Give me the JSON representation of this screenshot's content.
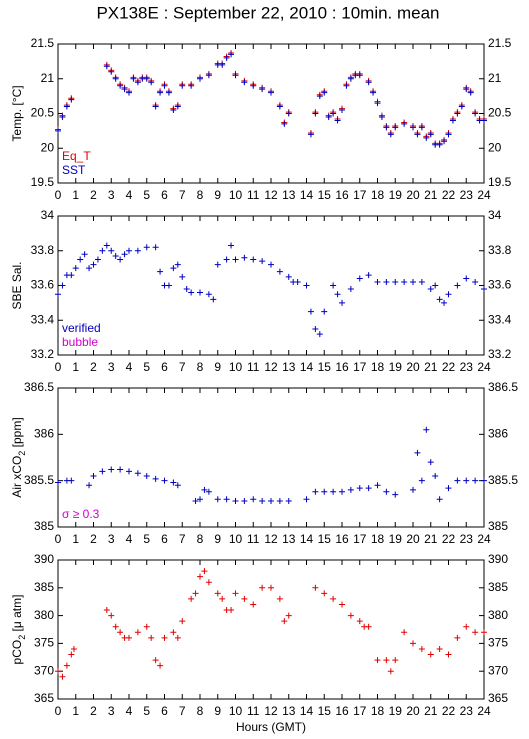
{
  "chart_data": [
    {
      "type": "scatter",
      "title": "PX138E : September 22, 2010 : 10min. mean",
      "ylabel": "Temp. [°C]",
      "x": [
        0,
        0.25,
        0.5,
        0.75,
        2.75,
        3,
        3.25,
        3.5,
        3.75,
        4,
        4.25,
        4.5,
        4.75,
        5,
        5.25,
        5.5,
        5.75,
        6,
        6.25,
        6.5,
        6.75,
        7,
        7.5,
        8,
        8.5,
        9,
        9.25,
        9.5,
        9.75,
        10,
        10.5,
        11,
        11.5,
        12,
        12.5,
        12.75,
        13,
        14.25,
        14.5,
        14.75,
        15,
        15.25,
        15.5,
        15.75,
        16,
        16.25,
        16.5,
        16.75,
        17,
        17.5,
        17.75,
        18,
        18.25,
        18.5,
        18.75,
        19,
        19.5,
        20,
        20.25,
        20.5,
        20.75,
        21,
        21.25,
        21.5,
        21.75,
        22,
        22.25,
        22.5,
        22.75,
        23,
        23.25,
        23.5,
        23.75,
        24
      ],
      "series": [
        {
          "name": "Eq_T",
          "color": "#e00000",
          "values": [
            20.27,
            20.47,
            20.62,
            20.72,
            21.2,
            21.12,
            21.02,
            20.92,
            20.87,
            20.82,
            21.02,
            20.97,
            21.02,
            21.02,
            20.97,
            20.62,
            20.82,
            20.92,
            20.82,
            20.57,
            20.62,
            20.92,
            20.92,
            21.02,
            21.07,
            21.22,
            21.22,
            21.32,
            21.37,
            21.07,
            20.97,
            20.92,
            20.87,
            20.82,
            20.62,
            20.37,
            20.52,
            20.22,
            20.52,
            20.77,
            20.82,
            20.47,
            20.52,
            20.42,
            20.57,
            20.92,
            21.02,
            21.07,
            21.07,
            20.97,
            20.82,
            20.67,
            20.47,
            20.32,
            20.22,
            20.32,
            20.37,
            20.32,
            20.22,
            20.32,
            20.17,
            20.22,
            20.07,
            20.07,
            20.12,
            20.22,
            20.42,
            20.52,
            20.62,
            20.87,
            20.82,
            20.52,
            20.42,
            20.42
          ]
        },
        {
          "name": "SST",
          "color": "#0000c0",
          "values": [
            20.25,
            20.45,
            20.6,
            20.7,
            21.18,
            21.1,
            21.0,
            20.9,
            20.85,
            20.8,
            21.0,
            20.95,
            21.0,
            21.0,
            20.95,
            20.6,
            20.8,
            20.9,
            20.8,
            20.55,
            20.6,
            20.9,
            20.9,
            21.0,
            21.05,
            21.2,
            21.2,
            21.3,
            21.35,
            21.05,
            20.95,
            20.9,
            20.85,
            20.8,
            20.6,
            20.35,
            20.5,
            20.2,
            20.5,
            20.75,
            20.8,
            20.45,
            20.5,
            20.4,
            20.55,
            20.9,
            21.0,
            21.05,
            21.05,
            20.95,
            20.8,
            20.65,
            20.45,
            20.3,
            20.2,
            20.3,
            20.35,
            20.3,
            20.2,
            20.3,
            20.15,
            20.2,
            20.05,
            20.05,
            20.1,
            20.2,
            20.4,
            20.5,
            20.6,
            20.85,
            20.8,
            20.5,
            20.4,
            20.4
          ]
        }
      ],
      "xlim": [
        0,
        24
      ],
      "xticks": [
        0,
        1,
        2,
        3,
        4,
        5,
        6,
        7,
        8,
        9,
        10,
        11,
        12,
        13,
        14,
        15,
        16,
        17,
        18,
        19,
        20,
        21,
        22,
        23,
        24
      ],
      "ylim": [
        19.5,
        21.5
      ],
      "yticks": [
        19.5,
        20,
        20.5,
        21,
        21.5
      ]
    },
    {
      "type": "scatter",
      "ylabel": "SBE Sal.",
      "x": [
        0,
        0.25,
        0.5,
        0.75,
        1,
        1.25,
        1.5,
        1.75,
        2,
        2.25,
        2.5,
        2.75,
        3,
        3.25,
        3.5,
        3.75,
        4,
        4.5,
        5,
        5.5,
        5.75,
        6,
        6.25,
        6.5,
        6.75,
        7,
        7.25,
        7.5,
        8,
        8.5,
        8.75,
        9,
        9.5,
        9.75,
        10,
        10.5,
        11,
        11.5,
        12,
        12.5,
        13,
        13.25,
        13.5,
        14,
        14.25,
        14.5,
        14.75,
        15,
        15.5,
        15.75,
        16,
        16.5,
        17,
        17.5,
        18,
        18.5,
        19,
        19.5,
        20,
        20.5,
        21,
        21.25,
        21.5,
        21.75,
        22,
        22.5,
        23,
        23.5,
        24
      ],
      "series": [
        {
          "name": "verified",
          "color": "#0000c0",
          "values": [
            33.55,
            33.6,
            33.66,
            33.66,
            33.7,
            33.75,
            33.78,
            33.7,
            33.72,
            33.75,
            33.8,
            33.83,
            33.8,
            33.77,
            33.75,
            33.78,
            33.8,
            33.8,
            33.82,
            33.82,
            33.68,
            33.6,
            33.6,
            33.7,
            33.72,
            33.65,
            33.58,
            33.56,
            33.56,
            33.55,
            33.52,
            33.72,
            33.75,
            33.83,
            33.75,
            33.76,
            33.75,
            33.74,
            33.72,
            33.68,
            33.65,
            33.62,
            33.62,
            33.6,
            33.45,
            33.35,
            33.32,
            33.45,
            33.6,
            33.55,
            33.5,
            33.58,
            33.64,
            33.66,
            33.62,
            33.62,
            33.62,
            33.62,
            33.62,
            33.62,
            33.58,
            33.6,
            33.52,
            33.5,
            33.55,
            33.6,
            33.64,
            33.62,
            33.58
          ]
        },
        {
          "name": "bubble",
          "color": "#d000d0",
          "values": []
        }
      ],
      "xlim": [
        0,
        24
      ],
      "xticks": [
        0,
        1,
        2,
        3,
        4,
        5,
        6,
        7,
        8,
        9,
        10,
        11,
        12,
        13,
        14,
        15,
        16,
        17,
        18,
        19,
        20,
        21,
        22,
        23,
        24
      ],
      "ylim": [
        33.2,
        34
      ],
      "yticks": [
        33.2,
        33.4,
        33.6,
        33.8,
        34
      ]
    },
    {
      "type": "scatter",
      "ylabel": [
        "Air xCO",
        "2",
        " [ppm]"
      ],
      "x": [
        0,
        0.5,
        0.75,
        1.75,
        2,
        2.5,
        3,
        3.5,
        4,
        4.5,
        5,
        5.5,
        6,
        6.5,
        6.75,
        7.75,
        8,
        8.25,
        8.5,
        9,
        9.5,
        10,
        10.5,
        11,
        11.5,
        12,
        12.5,
        13,
        14,
        14.5,
        15,
        15.5,
        16,
        16.5,
        17,
        17.5,
        18,
        18.5,
        19,
        20,
        20.25,
        20.5,
        20.75,
        21,
        21.25,
        21.5,
        22,
        22.5,
        23,
        23.5,
        24
      ],
      "series": [
        {
          "name": "σ ≥ 0.3",
          "color": "#d000d0",
          "values": []
        },
        {
          "color": "#0000c0",
          "values": [
            385.48,
            385.5,
            385.5,
            385.45,
            385.55,
            385.6,
            385.62,
            385.62,
            385.6,
            385.58,
            385.55,
            385.52,
            385.5,
            385.48,
            385.45,
            385.28,
            385.3,
            385.4,
            385.38,
            385.3,
            385.3,
            385.28,
            385.28,
            385.3,
            385.28,
            385.28,
            385.28,
            385.28,
            385.3,
            385.38,
            385.38,
            385.38,
            385.38,
            385.4,
            385.42,
            385.42,
            385.45,
            385.38,
            385.35,
            385.4,
            385.8,
            385.5,
            386.05,
            385.7,
            385.55,
            385.3,
            385.42,
            385.5,
            385.5,
            385.5,
            385.5
          ]
        }
      ],
      "xlim": [
        0,
        24
      ],
      "xticks": [
        0,
        1,
        2,
        3,
        4,
        5,
        6,
        7,
        8,
        9,
        10,
        11,
        12,
        13,
        14,
        15,
        16,
        17,
        18,
        19,
        20,
        21,
        22,
        23,
        24
      ],
      "ylim": [
        385,
        386.5
      ],
      "yticks": [
        385,
        385.5,
        386,
        386.5
      ]
    },
    {
      "type": "scatter",
      "ylabel": [
        "pCO",
        "2",
        " [μ atm]"
      ],
      "xlabel": "Hours (GMT)",
      "x": [
        0,
        0.25,
        0.5,
        0.75,
        0.9,
        2.75,
        3,
        3.25,
        3.5,
        3.75,
        4,
        4.5,
        5,
        5.25,
        5.5,
        5.75,
        6,
        6.5,
        6.75,
        7,
        7.5,
        7.75,
        8,
        8.25,
        8.5,
        9,
        9.25,
        9.5,
        9.75,
        10,
        10.5,
        11,
        11.5,
        12,
        12.5,
        12.75,
        13,
        14.5,
        15,
        15.5,
        16,
        16.5,
        17,
        17.25,
        17.5,
        18,
        18.5,
        18.75,
        19,
        19.5,
        20,
        20.5,
        21,
        21.5,
        22,
        22.5,
        23,
        23.5,
        24
      ],
      "series": [
        {
          "color": "#e00000",
          "values": [
            370,
            369,
            371,
            373,
            374,
            381,
            380,
            378,
            377,
            376,
            376,
            377,
            378,
            376,
            372,
            371,
            376,
            377,
            376,
            379,
            383,
            384,
            387,
            388,
            386,
            384,
            383,
            381,
            381,
            384,
            383,
            382,
            385,
            385,
            383,
            379,
            380,
            385,
            384,
            383,
            382,
            380,
            379,
            378,
            378,
            372,
            372,
            370,
            372,
            377,
            375,
            374,
            373,
            374,
            373,
            376,
            378,
            377,
            377
          ]
        }
      ],
      "xlim": [
        0,
        24
      ],
      "xticks": [
        0,
        1,
        2,
        3,
        4,
        5,
        6,
        7,
        8,
        9,
        10,
        11,
        12,
        13,
        14,
        15,
        16,
        17,
        18,
        19,
        20,
        21,
        22,
        23,
        24
      ],
      "ylim": [
        365,
        390
      ],
      "yticks": [
        365,
        370,
        375,
        380,
        385,
        390
      ]
    }
  ]
}
